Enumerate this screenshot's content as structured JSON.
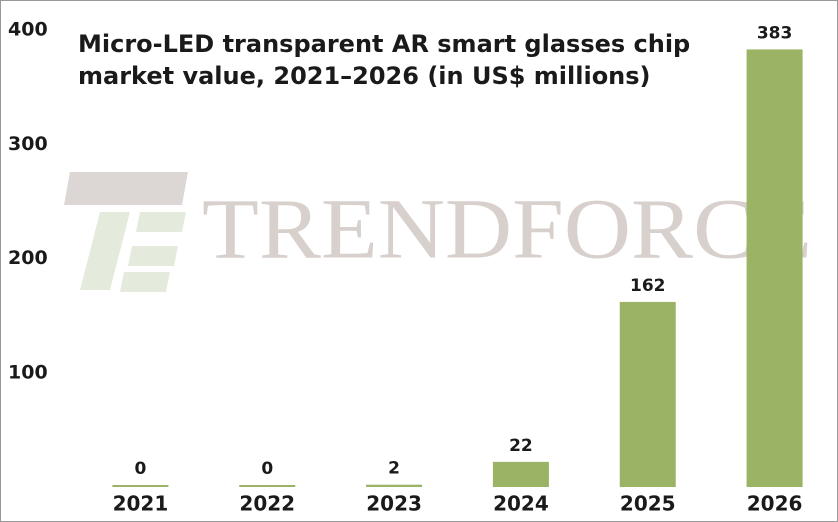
{
  "chart_data": {
    "type": "bar",
    "title_lines": [
      "Micro-LED transparent AR smart glasses chip",
      "market value, 2021–2026 (in US$ millions)"
    ],
    "watermark": "TRENDFORCE",
    "categories": [
      "2021",
      "2022",
      "2023",
      "2024",
      "2025",
      "2026"
    ],
    "values": [
      0,
      0,
      2,
      22,
      162,
      383
    ],
    "color": "#9bb364",
    "ylim": [
      0,
      400
    ],
    "yticks": [
      100,
      200,
      300,
      400
    ],
    "grid": false
  }
}
